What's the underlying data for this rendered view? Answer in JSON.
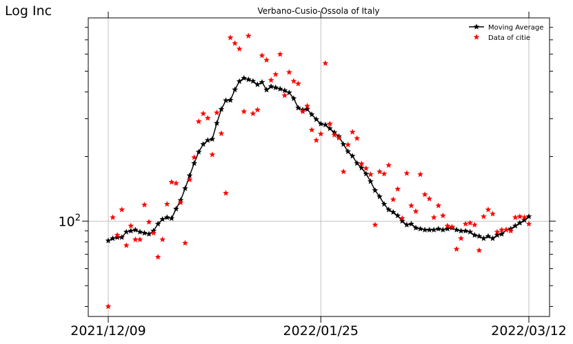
{
  "chart_data": {
    "type": "line",
    "title": "Verbano-Cusio-Ossola of Italy",
    "ylabel": "Log Inc",
    "xlabel": "",
    "y_scale": "log",
    "grid": true,
    "legend_position": "top-right",
    "x_tick_labels": [
      "2021/12/09",
      "2022/01/25",
      "2022/03/12"
    ],
    "y_tick_labels": [
      {
        "value": 100,
        "label": "10^2"
      }
    ],
    "x_range": [
      "2021/12/09",
      "2022/03/12"
    ],
    "y_range": [
      37,
      860
    ],
    "series": [
      {
        "name": "Moving Average",
        "color": "#000000",
        "marker": "star",
        "line": true,
        "x": [
          "2021/12/09",
          "2021/12/10",
          "2021/12/11",
          "2021/12/12",
          "2021/12/13",
          "2021/12/14",
          "2021/12/15",
          "2021/12/16",
          "2021/12/17",
          "2021/12/18",
          "2021/12/19",
          "2021/12/20",
          "2021/12/21",
          "2021/12/22",
          "2021/12/23",
          "2021/12/24",
          "2021/12/25",
          "2021/12/26",
          "2021/12/27",
          "2021/12/28",
          "2021/12/29",
          "2021/12/30",
          "2021/12/31",
          "2022/01/01",
          "2022/01/02",
          "2022/01/03",
          "2022/01/04",
          "2022/01/05",
          "2022/01/06",
          "2022/01/07",
          "2022/01/08",
          "2022/01/09",
          "2022/01/10",
          "2022/01/11",
          "2022/01/12",
          "2022/01/13",
          "2022/01/14",
          "2022/01/15",
          "2022/01/16",
          "2022/01/17",
          "2022/01/18",
          "2022/01/19",
          "2022/01/20",
          "2022/01/21",
          "2022/01/22",
          "2022/01/23",
          "2022/01/24",
          "2022/01/25",
          "2022/01/26",
          "2022/01/27",
          "2022/01/28",
          "2022/01/29",
          "2022/01/30",
          "2022/01/31",
          "2022/02/01",
          "2022/02/02",
          "2022/02/03",
          "2022/02/04",
          "2022/02/05",
          "2022/02/06",
          "2022/02/07",
          "2022/02/08",
          "2022/02/09",
          "2022/02/10",
          "2022/02/11",
          "2022/02/12",
          "2022/02/13",
          "2022/02/14",
          "2022/02/15",
          "2022/02/16",
          "2022/02/17",
          "2022/02/18",
          "2022/02/19",
          "2022/02/20",
          "2022/02/21",
          "2022/02/22",
          "2022/02/23",
          "2022/02/24",
          "2022/02/25",
          "2022/02/26",
          "2022/02/27",
          "2022/02/28",
          "2022/03/01",
          "2022/03/02",
          "2022/03/03",
          "2022/03/04",
          "2022/03/05",
          "2022/03/06",
          "2022/03/07",
          "2022/03/08",
          "2022/03/09",
          "2022/03/10",
          "2022/03/11",
          "2022/03/12"
        ],
        "y": [
          81,
          83,
          84,
          84,
          89,
          90,
          91,
          89,
          88,
          87,
          90,
          97,
          102,
          104,
          103,
          114,
          125,
          142,
          163,
          186,
          210,
          228,
          238,
          241,
          286,
          332,
          365,
          366,
          410,
          448,
          464,
          457,
          449,
          433,
          444,
          409,
          424,
          419,
          413,
          406,
          397,
          373,
          337,
          330,
          332,
          314,
          298,
          284,
          281,
          270,
          259,
          248,
          228,
          211,
          201,
          186,
          177,
          166,
          153,
          139,
          130,
          120,
          113,
          110,
          106,
          100,
          96,
          97,
          93,
          92,
          91,
          91,
          91,
          92,
          91,
          92,
          93,
          91,
          90,
          90,
          89,
          86,
          85,
          83,
          85,
          83,
          86,
          87,
          91,
          92,
          95,
          98,
          101,
          105
        ]
      },
      {
        "name": "Data of citie",
        "color": "#ff0000",
        "marker": "star",
        "line": false,
        "x": [
          "2021/12/09",
          "2021/12/10",
          "2021/12/11",
          "2021/12/12",
          "2021/12/13",
          "2021/12/14",
          "2021/12/15",
          "2021/12/16",
          "2021/12/17",
          "2021/12/18",
          "2021/12/19",
          "2021/12/20",
          "2021/12/21",
          "2021/12/22",
          "2021/12/23",
          "2021/12/24",
          "2021/12/25",
          "2021/12/26",
          "2021/12/27",
          "2021/12/28",
          "2021/12/29",
          "2021/12/30",
          "2021/12/31",
          "2022/01/01",
          "2022/01/02",
          "2022/01/03",
          "2022/01/04",
          "2022/01/05",
          "2022/01/06",
          "2022/01/07",
          "2022/01/08",
          "2022/01/09",
          "2022/01/10",
          "2022/01/11",
          "2022/01/12",
          "2022/01/13",
          "2022/01/14",
          "2022/01/15",
          "2022/01/16",
          "2022/01/17",
          "2022/01/18",
          "2022/01/19",
          "2022/01/20",
          "2022/01/21",
          "2022/01/22",
          "2022/01/23",
          "2022/01/24",
          "2022/01/25",
          "2022/01/26",
          "2022/01/27",
          "2022/01/28",
          "2022/01/29",
          "2022/01/30",
          "2022/01/31",
          "2022/02/01",
          "2022/02/02",
          "2022/02/03",
          "2022/02/04",
          "2022/02/05",
          "2022/02/06",
          "2022/02/07",
          "2022/02/08",
          "2022/02/09",
          "2022/02/10",
          "2022/02/11",
          "2022/02/12",
          "2022/02/13",
          "2022/02/14",
          "2022/02/15",
          "2022/02/16",
          "2022/02/17",
          "2022/02/18",
          "2022/02/19",
          "2022/02/20",
          "2022/02/21",
          "2022/02/22",
          "2022/02/23",
          "2022/02/24",
          "2022/02/25",
          "2022/02/26",
          "2022/02/27",
          "2022/02/28",
          "2022/03/01",
          "2022/03/02",
          "2022/03/03",
          "2022/03/04",
          "2022/03/05",
          "2022/03/06",
          "2022/03/07",
          "2022/03/08",
          "2022/03/09",
          "2022/03/10",
          "2022/03/11",
          "2022/03/12"
        ],
        "y": [
          40,
          104,
          86,
          113,
          77,
          95,
          82,
          82,
          119,
          99,
          88,
          68,
          82,
          120,
          152,
          150,
          122,
          79,
          156,
          198,
          291,
          317,
          302,
          204,
          320,
          256,
          135,
          716,
          674,
          635,
          324,
          730,
          317,
          330,
          591,
          563,
          454,
          483,
          599,
          385,
          494,
          449,
          437,
          324,
          344,
          266,
          238,
          255,
          544,
          284,
          252,
          244,
          170,
          227,
          260,
          243,
          185,
          176,
          165,
          96,
          170,
          166,
          182,
          126,
          141,
          103,
          167,
          118,
          111,
          165,
          133,
          127,
          104,
          118,
          106,
          95,
          94,
          74,
          83,
          97,
          98,
          96,
          73,
          105,
          113,
          108,
          89,
          91,
          91,
          90,
          104,
          105,
          104,
          97
        ]
      }
    ]
  }
}
